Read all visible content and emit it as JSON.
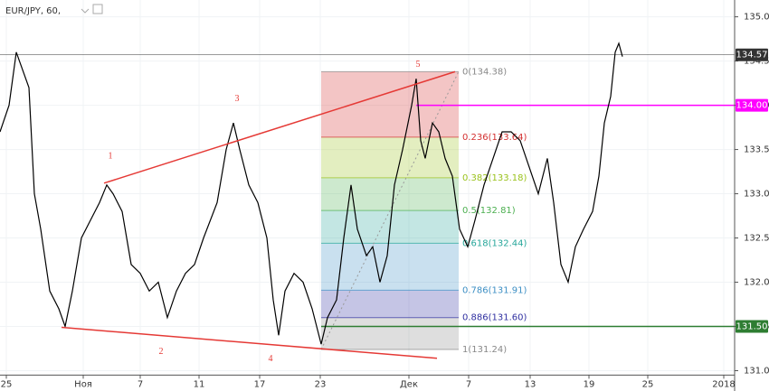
{
  "chart_data": {
    "type": "line",
    "title": "EUR/JPY, 60,",
    "color": "#000000",
    "x": [
      0,
      1,
      1.8,
      2.5,
      3.2,
      3.8,
      4.5,
      5.5,
      6.5,
      7.2,
      8,
      9,
      10,
      11,
      11.8,
      12.5,
      13.5,
      14.5,
      15.5,
      16.5,
      17.5,
      18.5,
      19.5,
      20.5,
      21.5,
      22.5,
      24,
      25,
      25.8,
      26.5,
      27.5,
      28.5,
      29.5,
      30.2,
      30.8,
      31.5,
      32.5,
      33.5,
      34.5,
      35.5,
      36.2,
      37.2,
      38,
      38.8,
      39.5,
      40.5,
      41.2,
      42,
      42.8,
      43.6,
      44.5,
      45.5,
      46,
      46.5,
      47,
      47.8,
      48.5,
      49.2,
      50,
      50.8,
      51.7,
      52.5,
      53.5,
      54.5,
      55.5,
      56.5,
      57.5,
      58.5,
      59.5,
      60.5,
      61.2,
      62,
      62.8,
      63.6,
      64.5,
      65.5,
      66.2,
      66.8,
      67.5,
      68,
      68.4,
      68.8
    ],
    "values": [
      133.7,
      134.0,
      134.6,
      134.4,
      134.2,
      133.0,
      132.6,
      131.9,
      131.7,
      131.5,
      131.9,
      132.5,
      132.7,
      132.9,
      133.1,
      133.0,
      132.8,
      132.2,
      132.1,
      131.9,
      132.0,
      131.6,
      131.9,
      132.1,
      132.2,
      132.5,
      132.9,
      133.5,
      133.8,
      133.5,
      133.1,
      132.9,
      132.5,
      131.8,
      131.4,
      131.9,
      132.1,
      132.0,
      131.7,
      131.3,
      131.6,
      131.8,
      132.5,
      133.1,
      132.6,
      132.3,
      132.4,
      132.0,
      132.3,
      133.1,
      133.5,
      134.0,
      134.3,
      133.6,
      133.4,
      133.8,
      133.7,
      133.4,
      133.2,
      132.6,
      132.4,
      132.7,
      133.1,
      133.4,
      133.7,
      133.7,
      133.6,
      133.3,
      133.0,
      133.4,
      132.9,
      132.2,
      132.0,
      132.4,
      132.6,
      132.8,
      133.2,
      133.8,
      134.1,
      134.6,
      134.7,
      134.55
    ],
    "xlim": [
      0,
      81.2
    ],
    "ylim": [
      130.95,
      135.19
    ],
    "xticks": [
      {
        "value": 0.7,
        "label": "25"
      },
      {
        "value": 9.2,
        "label": "Ноя"
      },
      {
        "value": 15.5,
        "label": "7"
      },
      {
        "value": 22,
        "label": "11"
      },
      {
        "value": 28.7,
        "label": "17"
      },
      {
        "value": 35.4,
        "label": "23"
      },
      {
        "value": 45.2,
        "label": "Дек"
      },
      {
        "value": 51.8,
        "label": "7"
      },
      {
        "value": 58.6,
        "label": "13"
      },
      {
        "value": 65.1,
        "label": "19"
      },
      {
        "value": 71.6,
        "label": "25"
      },
      {
        "value": 80,
        "label": "2018"
      }
    ],
    "yticks": [
      {
        "value": 131,
        "label": "131.00"
      },
      {
        "value": 131.5,
        "label": "131.50"
      },
      {
        "value": 132,
        "label": "132.00"
      },
      {
        "value": 132.5,
        "label": "132.50"
      },
      {
        "value": 133,
        "label": "133.00"
      },
      {
        "value": 133.5,
        "label": "133.50"
      },
      {
        "value": 134,
        "label": "134.00"
      },
      {
        "value": 134.5,
        "label": "134.50"
      },
      {
        "value": 135,
        "label": "135.00"
      }
    ],
    "fibonacci": {
      "x_range": [
        35.5,
        50.7
      ],
      "levels": [
        {
          "value": 134.38,
          "label": "0(134.38)",
          "color": "#888888"
        },
        {
          "value": 133.64,
          "label": "0.236(133.64)",
          "color": "#d32f2f"
        },
        {
          "value": 133.18,
          "label": "0.382(133.18)",
          "color": "#9ac21b"
        },
        {
          "value": 132.81,
          "label": "0.5(132.81)",
          "color": "#4caf50"
        },
        {
          "value": 132.44,
          "label": "0.618(132.44)",
          "color": "#26a69a"
        },
        {
          "value": 131.91,
          "label": "0.786(131.91)",
          "color": "#3d8fc4"
        },
        {
          "value": 131.6,
          "label": "0.886(131.60)",
          "color": "#2f2fa0"
        },
        {
          "value": 131.24,
          "label": "1(131.24)",
          "color": "#888888"
        }
      ]
    },
    "price_lines": [
      {
        "value": 134.57,
        "label": "134.57",
        "color": "#333333",
        "x_start": 0
      },
      {
        "value": 134,
        "label": "134.00",
        "color": "#ff00ff",
        "x_start": 46
      },
      {
        "value": 131.5,
        "label": "131.50",
        "color": "#2e7d32",
        "x_start": 35.5
      }
    ],
    "trendlines": [
      {
        "x": [
          11.5,
          50.3
        ],
        "y": [
          133.12,
          134.38
        ],
        "color": "#e53935"
      },
      {
        "x": [
          6.8,
          48.3
        ],
        "y": [
          131.49,
          131.14
        ],
        "color": "#e53935"
      }
    ],
    "annotations": [
      {
        "text": "1",
        "x": 12.2,
        "y": 133.42
      },
      {
        "text": "2",
        "x": 17.8,
        "y": 131.21
      },
      {
        "text": "3",
        "x": 26.2,
        "y": 134.07
      },
      {
        "text": "4",
        "x": 29.9,
        "y": 131.13
      },
      {
        "text": "5",
        "x": 46.2,
        "y": 134.46
      }
    ]
  }
}
